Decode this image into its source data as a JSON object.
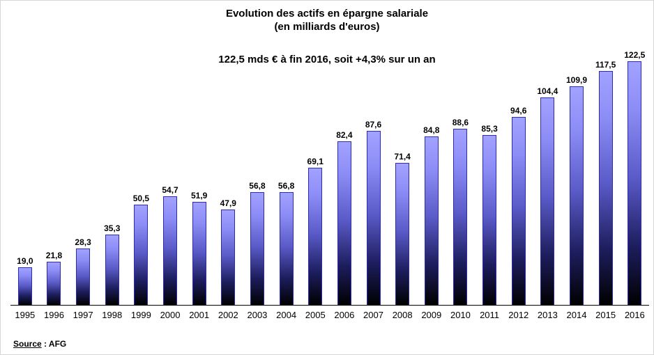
{
  "title": {
    "line1": "Evolution des actifs en épargne salariale",
    "line2": "(en milliards d'euros)",
    "subtitle": "122,5 mds € à fin 2016, soit +4,3% sur un an"
  },
  "source": {
    "label": "Source",
    "rest": " : AFG"
  },
  "chart_data": {
    "type": "bar",
    "title": "Evolution des actifs en épargne salariale (en milliards d'euros)",
    "subtitle": "122,5 mds € à fin 2016, soit +4,3% sur un an",
    "categories": [
      "1995",
      "1996",
      "1997",
      "1998",
      "1999",
      "2000",
      "2001",
      "2002",
      "2003",
      "2004",
      "2005",
      "2006",
      "2007",
      "2008",
      "2009",
      "2010",
      "2011",
      "2012",
      "2013",
      "2014",
      "2015",
      "2016"
    ],
    "values": [
      19.0,
      21.8,
      28.3,
      35.3,
      50.5,
      54.7,
      51.9,
      47.9,
      56.8,
      56.8,
      69.1,
      82.4,
      87.6,
      71.4,
      84.8,
      88.6,
      85.3,
      94.6,
      104.4,
      109.9,
      117.5,
      122.5
    ],
    "labels": [
      "19,0",
      "21,8",
      "28,3",
      "35,3",
      "50,5",
      "54,7",
      "51,9",
      "47,9",
      "56,8",
      "56,8",
      "69,1",
      "82,4",
      "87,6",
      "71,4",
      "84,8",
      "88,6",
      "85,3",
      "94,6",
      "104,4",
      "109,9",
      "117,5",
      "122,5"
    ],
    "xlabel": "",
    "ylabel": "",
    "ylim": [
      0,
      126
    ],
    "y_axis_visible": false,
    "grid": false,
    "legend": null,
    "source": "Source : AFG",
    "bar_color_top": "#a2a2ff",
    "bar_color_bottom": "#000000",
    "bar_border_color": "#2b2bb4"
  }
}
